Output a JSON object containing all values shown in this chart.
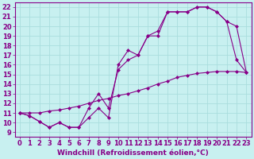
{
  "xlabel": "Windchill (Refroidissement éolien,°C)",
  "bg_color": "#c8f0f0",
  "line_color": "#880088",
  "grid_color": "#aadddd",
  "xlim": [
    -0.5,
    23.5
  ],
  "ylim": [
    8.5,
    22.5
  ],
  "xticks": [
    0,
    1,
    2,
    3,
    4,
    5,
    6,
    7,
    8,
    9,
    10,
    11,
    12,
    13,
    14,
    15,
    16,
    17,
    18,
    19,
    20,
    21,
    22,
    23
  ],
  "yticks": [
    9,
    10,
    11,
    12,
    13,
    14,
    15,
    16,
    17,
    18,
    19,
    20,
    21,
    22
  ],
  "line1_x": [
    0,
    1,
    2,
    3,
    4,
    5,
    6,
    7,
    8,
    9,
    10,
    11,
    12,
    13,
    14,
    15,
    16,
    17,
    18,
    19,
    20,
    21,
    22,
    23
  ],
  "line1_y": [
    11.0,
    10.7,
    10.1,
    9.5,
    10.0,
    9.5,
    9.5,
    10.5,
    11.5,
    10.5,
    16.0,
    17.5,
    17.0,
    19.0,
    19.0,
    21.5,
    21.5,
    21.5,
    22.0,
    22.0,
    21.5,
    20.5,
    16.5,
    15.2
  ],
  "line2_x": [
    0,
    1,
    2,
    3,
    4,
    5,
    6,
    7,
    8,
    9,
    10,
    11,
    12,
    13,
    14,
    15,
    16,
    17,
    18,
    19,
    20,
    21,
    22,
    23
  ],
  "line2_y": [
    11.0,
    10.7,
    10.1,
    9.5,
    10.0,
    9.5,
    9.5,
    11.5,
    13.0,
    11.5,
    15.5,
    16.5,
    17.0,
    19.0,
    19.5,
    21.5,
    21.5,
    21.5,
    22.0,
    22.0,
    21.5,
    20.5,
    20.0,
    15.2
  ],
  "line3_x": [
    0,
    1,
    2,
    3,
    4,
    5,
    6,
    7,
    8,
    9,
    10,
    11,
    12,
    13,
    14,
    15,
    16,
    17,
    18,
    19,
    20,
    21,
    22,
    23
  ],
  "line3_y": [
    11.0,
    11.0,
    11.0,
    11.2,
    11.3,
    11.5,
    11.7,
    12.0,
    12.3,
    12.5,
    12.8,
    13.0,
    13.3,
    13.6,
    14.0,
    14.3,
    14.7,
    14.9,
    15.1,
    15.2,
    15.3,
    15.3,
    15.3,
    15.2
  ],
  "xlabel_fontsize": 6.5,
  "tick_fontsize": 6.0,
  "marker_size": 2.5
}
